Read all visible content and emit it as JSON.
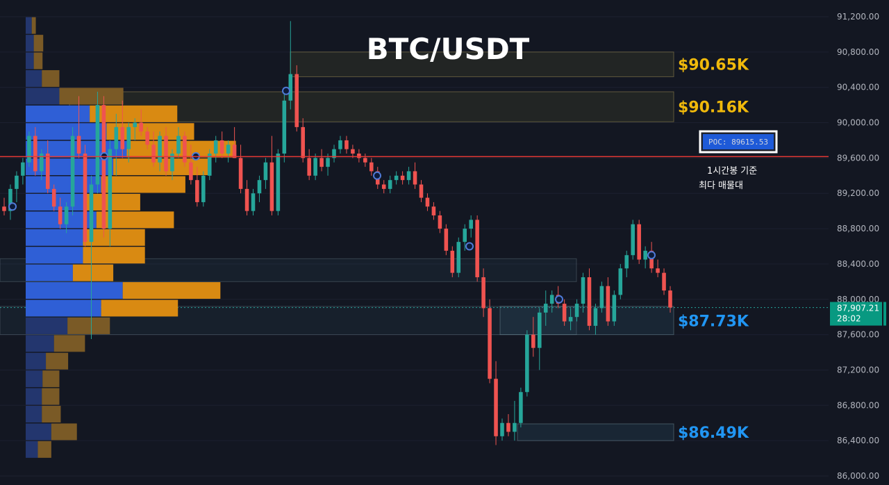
{
  "chart_data": {
    "type": "candlestick",
    "title": "BTC/USDT",
    "ylim": [
      86000,
      91200
    ],
    "y_ticks": [
      "91,200.00",
      "90,800.00",
      "90,400.00",
      "90,000.00",
      "89,600.00",
      "89,200.00",
      "88,800.00",
      "88,400.00",
      "88,000.00",
      "87,600.00",
      "87,200.00",
      "86,800.00",
      "86,400.00",
      "86,000.00"
    ],
    "y_tick_values": [
      91200,
      90800,
      90400,
      90000,
      89600,
      89200,
      88800,
      88400,
      88000,
      87600,
      87200,
      86800,
      86400,
      86000
    ],
    "levels": [
      {
        "label": "$90.65K",
        "low": 90520,
        "high": 90800,
        "color": "#f0b90b"
      },
      {
        "label": "$90.16K",
        "low": 90010,
        "high": 90350,
        "color": "#f0b90b"
      },
      {
        "label": "$87.73K",
        "low": 87600,
        "high": 87920,
        "color": "#2196f3"
      },
      {
        "label": "$86.49K",
        "low": 86400,
        "high": 86590,
        "color": "#2196f3"
      }
    ],
    "extra_zones": [
      {
        "low": 88200,
        "high": 88460,
        "kind": "neutral"
      },
      {
        "low": 87600,
        "high": 87920,
        "kind": "neutral"
      }
    ],
    "poc": {
      "label": "POC: 89615.53",
      "value": 89615.53,
      "note_line1": "1시간봉 기준",
      "note_line2": "최다 매물대"
    },
    "current_price": {
      "price": "87,907.21",
      "countdown": "28:02",
      "value": 87907.21
    },
    "volume_profile": [
      {
        "price": 91100,
        "buy": 9,
        "sell": 6
      },
      {
        "price": 90900,
        "buy": 12,
        "sell": 14
      },
      {
        "price": 90700,
        "buy": 12,
        "sell": 13
      },
      {
        "price": 90500,
        "buy": 24,
        "sell": 26
      },
      {
        "price": 90300,
        "buy": 50,
        "sell": 95
      },
      {
        "price": 90100,
        "buy": 95,
        "sell": 130
      },
      {
        "price": 89900,
        "buy": 120,
        "sell": 130
      },
      {
        "price": 89700,
        "buy": 150,
        "sell": 162
      },
      {
        "price": 89500,
        "buy": 130,
        "sell": 145
      },
      {
        "price": 89300,
        "buy": 112,
        "sell": 125
      },
      {
        "price": 89100,
        "buy": 90,
        "sell": 80
      },
      {
        "price": 88900,
        "buy": 105,
        "sell": 115
      },
      {
        "price": 88700,
        "buy": 85,
        "sell": 92
      },
      {
        "price": 88500,
        "buy": 85,
        "sell": 92
      },
      {
        "price": 88300,
        "buy": 70,
        "sell": 60
      },
      {
        "price": 88100,
        "buy": 144,
        "sell": 145
      },
      {
        "price": 87900,
        "buy": 112,
        "sell": 114
      },
      {
        "price": 87700,
        "buy": 62,
        "sell": 63
      },
      {
        "price": 87500,
        "buy": 42,
        "sell": 46
      },
      {
        "price": 87300,
        "buy": 30,
        "sell": 33
      },
      {
        "price": 87100,
        "buy": 25,
        "sell": 25
      },
      {
        "price": 86900,
        "buy": 24,
        "sell": 26
      },
      {
        "price": 86700,
        "buy": 24,
        "sell": 28
      },
      {
        "price": 86500,
        "buy": 38,
        "sell": 38
      },
      {
        "price": 86300,
        "buy": 18,
        "sell": 20
      }
    ],
    "candles": [
      [
        89050,
        89150,
        88950,
        89000
      ],
      [
        89000,
        89300,
        88900,
        89250
      ],
      [
        89250,
        89450,
        89100,
        89400
      ],
      [
        89400,
        89600,
        89300,
        89550
      ],
      [
        89550,
        89900,
        89500,
        89850
      ],
      [
        89850,
        89950,
        89400,
        89450
      ],
      [
        89450,
        89700,
        89350,
        89650
      ],
      [
        89650,
        89800,
        89200,
        89250
      ],
      [
        89250,
        89300,
        89000,
        89050
      ],
      [
        89050,
        89150,
        88800,
        88850
      ],
      [
        88850,
        89100,
        88750,
        89050
      ],
      [
        89050,
        89950,
        88950,
        89850
      ],
      [
        89850,
        90300,
        89600,
        89650
      ],
      [
        89650,
        89750,
        88600,
        88650
      ],
      [
        88650,
        89400,
        87550,
        89300
      ],
      [
        89300,
        90350,
        89200,
        90200
      ],
      [
        90200,
        90300,
        88700,
        88800
      ],
      [
        88800,
        89800,
        88600,
        89700
      ],
      [
        89700,
        90100,
        89400,
        89950
      ],
      [
        89950,
        90250,
        89600,
        89700
      ],
      [
        89700,
        90000,
        89550,
        89950
      ],
      [
        89950,
        90050,
        89800,
        90000
      ],
      [
        90000,
        90150,
        89850,
        89900
      ],
      [
        89900,
        89950,
        89700,
        89750
      ],
      [
        89750,
        89900,
        89500,
        89550
      ],
      [
        89550,
        89900,
        89450,
        89850
      ],
      [
        89850,
        89950,
        89400,
        89450
      ],
      [
        89450,
        89700,
        89350,
        89650
      ],
      [
        89650,
        89950,
        89600,
        89850
      ],
      [
        89850,
        89900,
        89500,
        89550
      ],
      [
        89550,
        89750,
        89300,
        89350
      ],
      [
        89350,
        89500,
        89050,
        89100
      ],
      [
        89100,
        89450,
        89050,
        89400
      ],
      [
        89400,
        89700,
        89350,
        89650
      ],
      [
        89650,
        89850,
        89550,
        89800
      ],
      [
        89800,
        89900,
        89600,
        89650
      ],
      [
        89650,
        89800,
        89550,
        89750
      ],
      [
        89750,
        89950,
        89600,
        89600
      ],
      [
        89600,
        89750,
        89200,
        89250
      ],
      [
        89250,
        89350,
        88950,
        89000
      ],
      [
        89000,
        89250,
        88950,
        89200
      ],
      [
        89200,
        89400,
        89100,
        89350
      ],
      [
        89350,
        89600,
        89250,
        89550
      ],
      [
        89550,
        89850,
        88950,
        89000
      ],
      [
        89000,
        89700,
        88950,
        89650
      ],
      [
        89650,
        90350,
        89550,
        90250
      ],
      [
        90250,
        91150,
        90150,
        90550
      ],
      [
        90550,
        90650,
        89900,
        89950
      ],
      [
        89950,
        90050,
        89550,
        89600
      ],
      [
        89600,
        89700,
        89350,
        89400
      ],
      [
        89400,
        89650,
        89350,
        89600
      ],
      [
        89600,
        89700,
        89450,
        89500
      ],
      [
        89500,
        89650,
        89400,
        89600
      ],
      [
        89600,
        89750,
        89550,
        89700
      ],
      [
        89700,
        89850,
        89650,
        89800
      ],
      [
        89800,
        89850,
        89650,
        89700
      ],
      [
        89700,
        89750,
        89600,
        89650
      ],
      [
        89650,
        89700,
        89550,
        89600
      ],
      [
        89600,
        89650,
        89500,
        89550
      ],
      [
        89550,
        89600,
        89400,
        89450
      ],
      [
        89450,
        89500,
        89250,
        89300
      ],
      [
        89300,
        89350,
        89200,
        89250
      ],
      [
        89250,
        89400,
        89200,
        89350
      ],
      [
        89350,
        89450,
        89300,
        89400
      ],
      [
        89400,
        89450,
        89300,
        89350
      ],
      [
        89350,
        89500,
        89300,
        89450
      ],
      [
        89450,
        89550,
        89250,
        89300
      ],
      [
        89300,
        89350,
        89100,
        89150
      ],
      [
        89150,
        89200,
        89000,
        89050
      ],
      [
        89050,
        89100,
        88900,
        88950
      ],
      [
        88950,
        89000,
        88750,
        88800
      ],
      [
        88800,
        88850,
        88500,
        88550
      ],
      [
        88550,
        88600,
        88250,
        88300
      ],
      [
        88300,
        88700,
        88250,
        88650
      ],
      [
        88650,
        88850,
        88550,
        88800
      ],
      [
        88800,
        88950,
        88700,
        88900
      ],
      [
        88900,
        88950,
        88200,
        88250
      ],
      [
        88250,
        88350,
        87800,
        87900
      ],
      [
        87900,
        88000,
        87050,
        87100
      ],
      [
        87100,
        87300,
        86350,
        86450
      ],
      [
        86450,
        86650,
        86400,
        86600
      ],
      [
        86600,
        86700,
        86450,
        86500
      ],
      [
        86500,
        86850,
        86400,
        86600
      ],
      [
        86600,
        87000,
        86550,
        86950
      ],
      [
        86950,
        87650,
        86900,
        87600
      ],
      [
        87600,
        87800,
        87350,
        87450
      ],
      [
        87450,
        87900,
        87200,
        87850
      ],
      [
        87850,
        88100,
        87700,
        87950
      ],
      [
        87950,
        88100,
        87850,
        88050
      ],
      [
        88050,
        88150,
        87900,
        87950
      ],
      [
        87950,
        88000,
        87700,
        87750
      ],
      [
        87750,
        87900,
        87650,
        87800
      ],
      [
        87800,
        88000,
        87750,
        87950
      ],
      [
        87950,
        88300,
        87850,
        88250
      ],
      [
        88250,
        88350,
        87650,
        87700
      ],
      [
        87700,
        87950,
        87600,
        87900
      ],
      [
        87900,
        88200,
        87850,
        88150
      ],
      [
        88150,
        88250,
        87700,
        87750
      ],
      [
        87750,
        88100,
        87700,
        88050
      ],
      [
        88050,
        88400,
        88000,
        88350
      ],
      [
        88350,
        88550,
        88250,
        88500
      ],
      [
        88500,
        88900,
        88450,
        88850
      ],
      [
        88850,
        88900,
        88400,
        88450
      ],
      [
        88450,
        88600,
        88350,
        88550
      ],
      [
        88550,
        88650,
        88300,
        88350
      ],
      [
        88350,
        88450,
        88250,
        88300
      ],
      [
        88300,
        88350,
        88050,
        88100
      ],
      [
        88100,
        88150,
        87850,
        87907.21
      ]
    ]
  }
}
